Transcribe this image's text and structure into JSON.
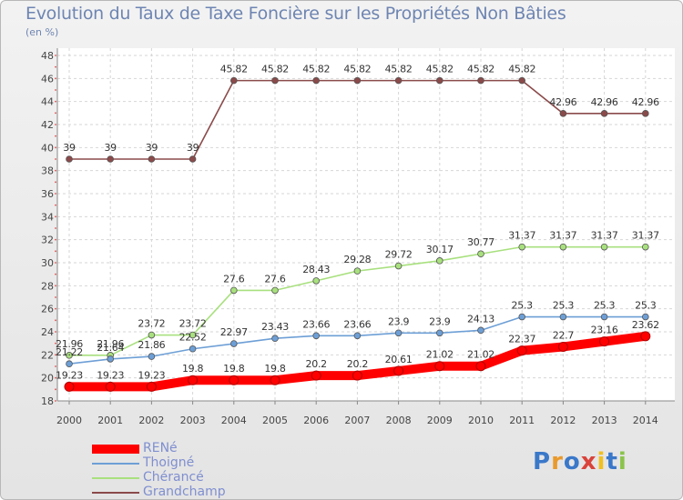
{
  "chart_data": {
    "type": "line",
    "title": "Evolution du Taux de Taxe Foncière sur les Propriétés Non Bâties",
    "unit_label": "(en %)",
    "xlabel": "",
    "ylabel": "",
    "ylim": [
      18,
      48
    ],
    "y_ticks": [
      18,
      20,
      22,
      24,
      26,
      28,
      30,
      32,
      34,
      36,
      38,
      40,
      42,
      44,
      46,
      48
    ],
    "grid": true,
    "legend_position": "bottom-left",
    "x": [
      "2000",
      "2001",
      "2002",
      "2003",
      "2004",
      "2005",
      "2006",
      "2007",
      "2008",
      "2009",
      "2010",
      "2011",
      "2012",
      "2013",
      "2014"
    ],
    "series": [
      {
        "name": "RENé",
        "color": "#ff0000",
        "values": [
          19.23,
          19.23,
          19.23,
          19.8,
          19.8,
          19.8,
          20.2,
          20.2,
          20.61,
          21.02,
          21.02,
          22.37,
          22.7,
          23.16,
          23.62
        ],
        "labels": [
          "19.23",
          "19.23",
          "19.23",
          "19.8",
          "19.8",
          "19.8",
          "20.2",
          "20.2",
          "20.61",
          "21.02",
          "21.02",
          "22.37",
          "22.7",
          "23.16",
          "23.62"
        ]
      },
      {
        "name": "Thoigné",
        "color": "#6d9fd6",
        "values": [
          21.22,
          21.64,
          21.86,
          22.52,
          22.97,
          23.43,
          23.66,
          23.66,
          23.9,
          23.9,
          24.13,
          25.3,
          25.3,
          25.3,
          25.3
        ],
        "labels": [
          "21.22",
          "21.64",
          "21.86",
          "22.52",
          "22.97",
          "23.43",
          "23.66",
          "23.66",
          "23.9",
          "23.9",
          "24.13",
          "25.3",
          "25.3",
          "25.3",
          "25.3"
        ]
      },
      {
        "name": "Chérancé",
        "color": "#a8e07e",
        "values": [
          21.96,
          21.96,
          23.72,
          23.72,
          27.6,
          27.6,
          28.43,
          29.28,
          29.72,
          30.17,
          30.77,
          31.37,
          31.37,
          31.37,
          31.37
        ],
        "labels": [
          "21.96",
          "21.96",
          "23.72",
          "23.72",
          "27.6",
          "27.6",
          "28.43",
          "29.28",
          "29.72",
          "30.17",
          "30.77",
          "31.37",
          "31.37",
          "31.37",
          "31.37"
        ]
      },
      {
        "name": "Grandchamp",
        "color": "#8b4a4a",
        "values": [
          39,
          39,
          39,
          39,
          45.82,
          45.82,
          45.82,
          45.82,
          45.82,
          45.82,
          45.82,
          45.82,
          42.96,
          42.96,
          42.96
        ],
        "labels": [
          "39",
          "39",
          "39",
          "39",
          "45.82",
          "45.82",
          "45.82",
          "45.82",
          "45.82",
          "45.82",
          "45.82",
          "45.82",
          "42.96",
          "42.96",
          "42.96"
        ]
      }
    ]
  },
  "logo": {
    "letters": [
      "P",
      "r",
      "o",
      "x",
      "i",
      "t",
      "i"
    ],
    "colors": [
      "#3a78c9",
      "#e89a2c",
      "#3a78c9",
      "#d9433a",
      "#f0c020",
      "#3a78c9",
      "#8bc34a"
    ]
  }
}
